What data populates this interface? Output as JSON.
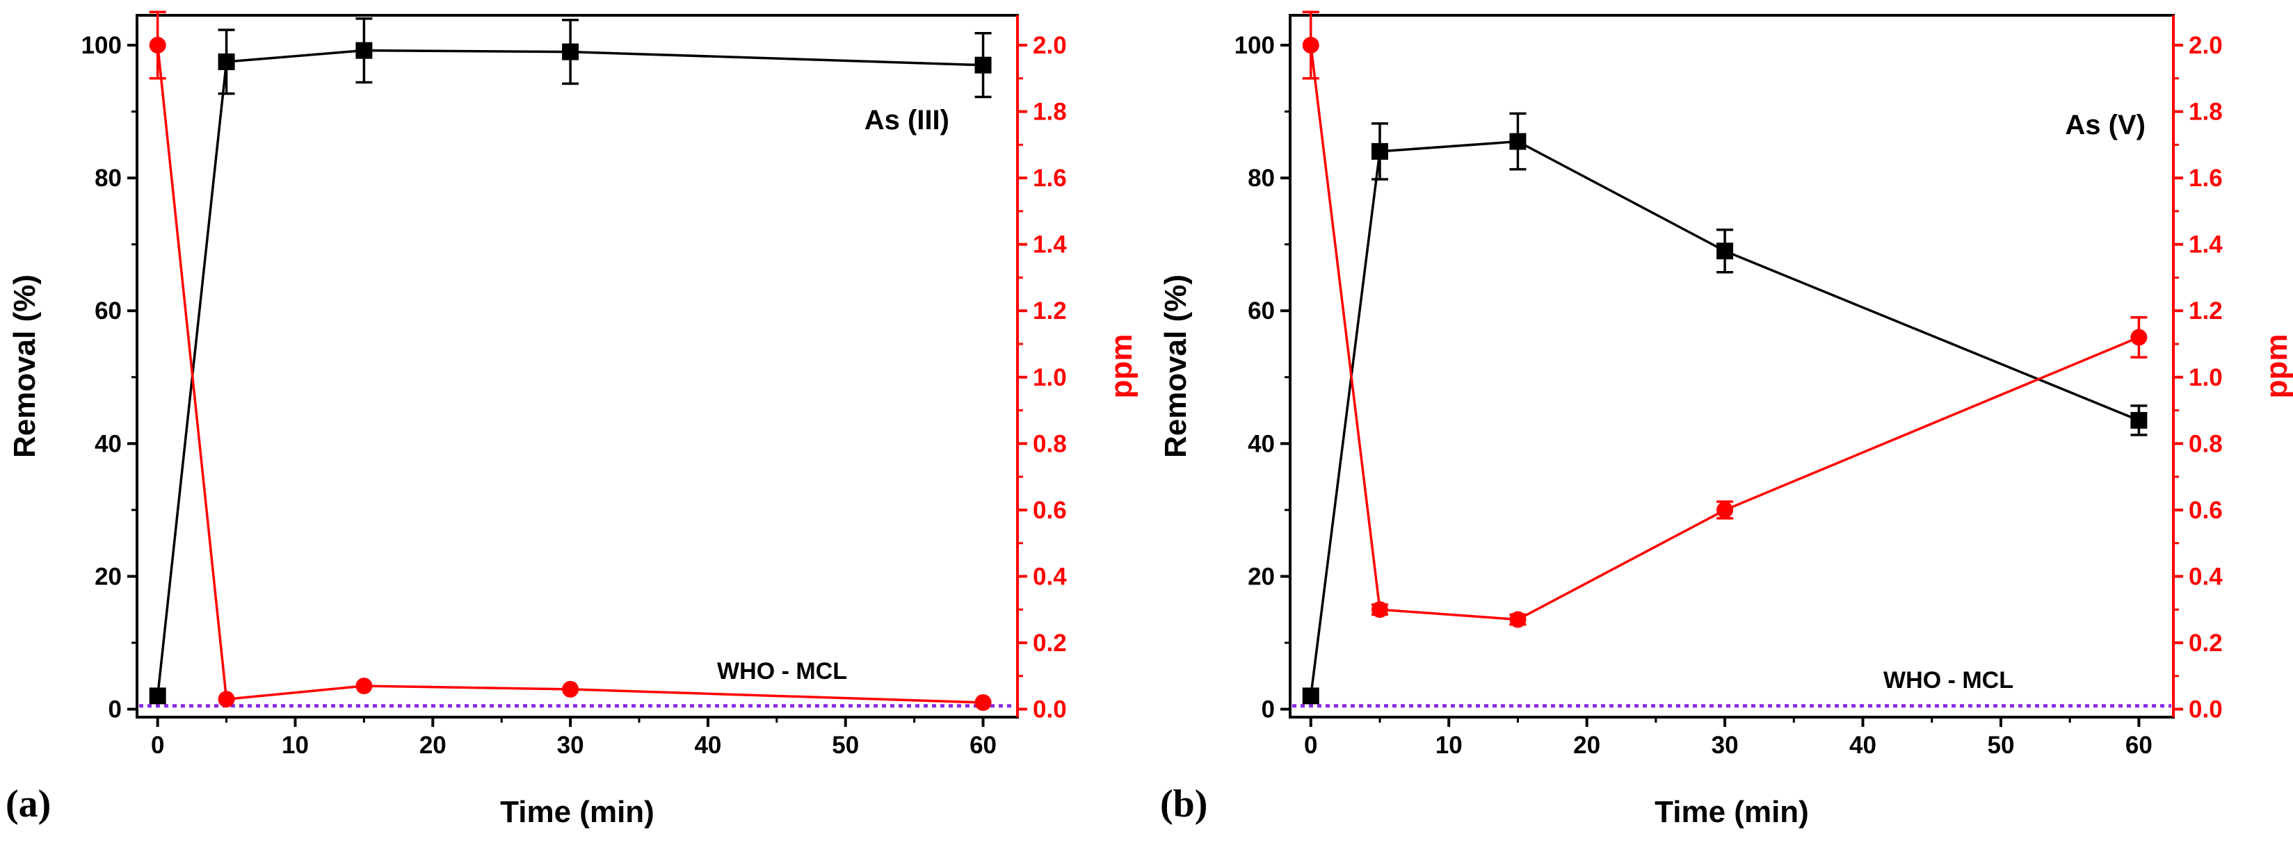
{
  "colors": {
    "removal": "#000000",
    "ppm": "#ff0000",
    "who_line": "#8a2be2"
  },
  "chart_data": [
    {
      "type": "line",
      "panel_label": "(a)",
      "title": "As (III)",
      "xlabel": "Time (min)",
      "ylabel_left": "Removal (%)",
      "ylabel_right": "ppm",
      "xlim": [
        -1.5,
        62.5
      ],
      "ylim_left": [
        -1.2,
        104.5
      ],
      "ylim_right": [
        -0.024,
        2.09
      ],
      "xticks": [
        0,
        10,
        20,
        30,
        40,
        50,
        60
      ],
      "yticks_left": [
        0,
        20,
        40,
        60,
        80,
        100
      ],
      "yticks_right": [
        0.0,
        0.2,
        0.4,
        0.6,
        0.8,
        1.0,
        1.2,
        1.4,
        1.6,
        1.8,
        2.0
      ],
      "x": [
        0,
        5,
        15,
        30,
        60
      ],
      "series": [
        {
          "name": "Removal (%)",
          "axis": "left",
          "marker": "square",
          "values": [
            2,
            97.5,
            99.2,
            99,
            97
          ],
          "errors": [
            0,
            4.8,
            4.8,
            4.8,
            4.8
          ]
        },
        {
          "name": "ppm",
          "axis": "right",
          "marker": "circle",
          "values": [
            2.0,
            0.03,
            0.07,
            0.06,
            0.02
          ],
          "errors": [
            0.1,
            0,
            0,
            0,
            0
          ]
        }
      ],
      "reference_line": {
        "label": "WHO - MCL",
        "value": 0.01,
        "axis": "right"
      }
    },
    {
      "type": "line",
      "panel_label": "(b)",
      "title": "As (V)",
      "xlabel": "Time (min)",
      "ylabel_left": "Removal (%)",
      "ylabel_right": "ppm",
      "xlim": [
        -1.5,
        62.5
      ],
      "ylim_left": [
        -1.2,
        104.5
      ],
      "ylim_right": [
        -0.024,
        2.09
      ],
      "xticks": [
        0,
        10,
        20,
        30,
        40,
        50,
        60
      ],
      "yticks_left": [
        0,
        20,
        40,
        60,
        80,
        100
      ],
      "yticks_right": [
        0.0,
        0.2,
        0.4,
        0.6,
        0.8,
        1.0,
        1.2,
        1.4,
        1.6,
        1.8,
        2.0
      ],
      "x": [
        0,
        5,
        15,
        30,
        60
      ],
      "series": [
        {
          "name": "Removal (%)",
          "axis": "left",
          "marker": "square",
          "values": [
            2,
            84,
            85.5,
            69,
            43.5
          ],
          "errors": [
            0,
            4.2,
            4.2,
            3.2,
            2.2
          ]
        },
        {
          "name": "ppm",
          "axis": "right",
          "marker": "circle",
          "values": [
            2.0,
            0.3,
            0.27,
            0.6,
            1.12
          ],
          "errors": [
            0.1,
            0.015,
            0.015,
            0.025,
            0.06
          ]
        }
      ],
      "reference_line": {
        "label": "WHO - MCL",
        "value": 0.01,
        "axis": "right"
      }
    }
  ]
}
